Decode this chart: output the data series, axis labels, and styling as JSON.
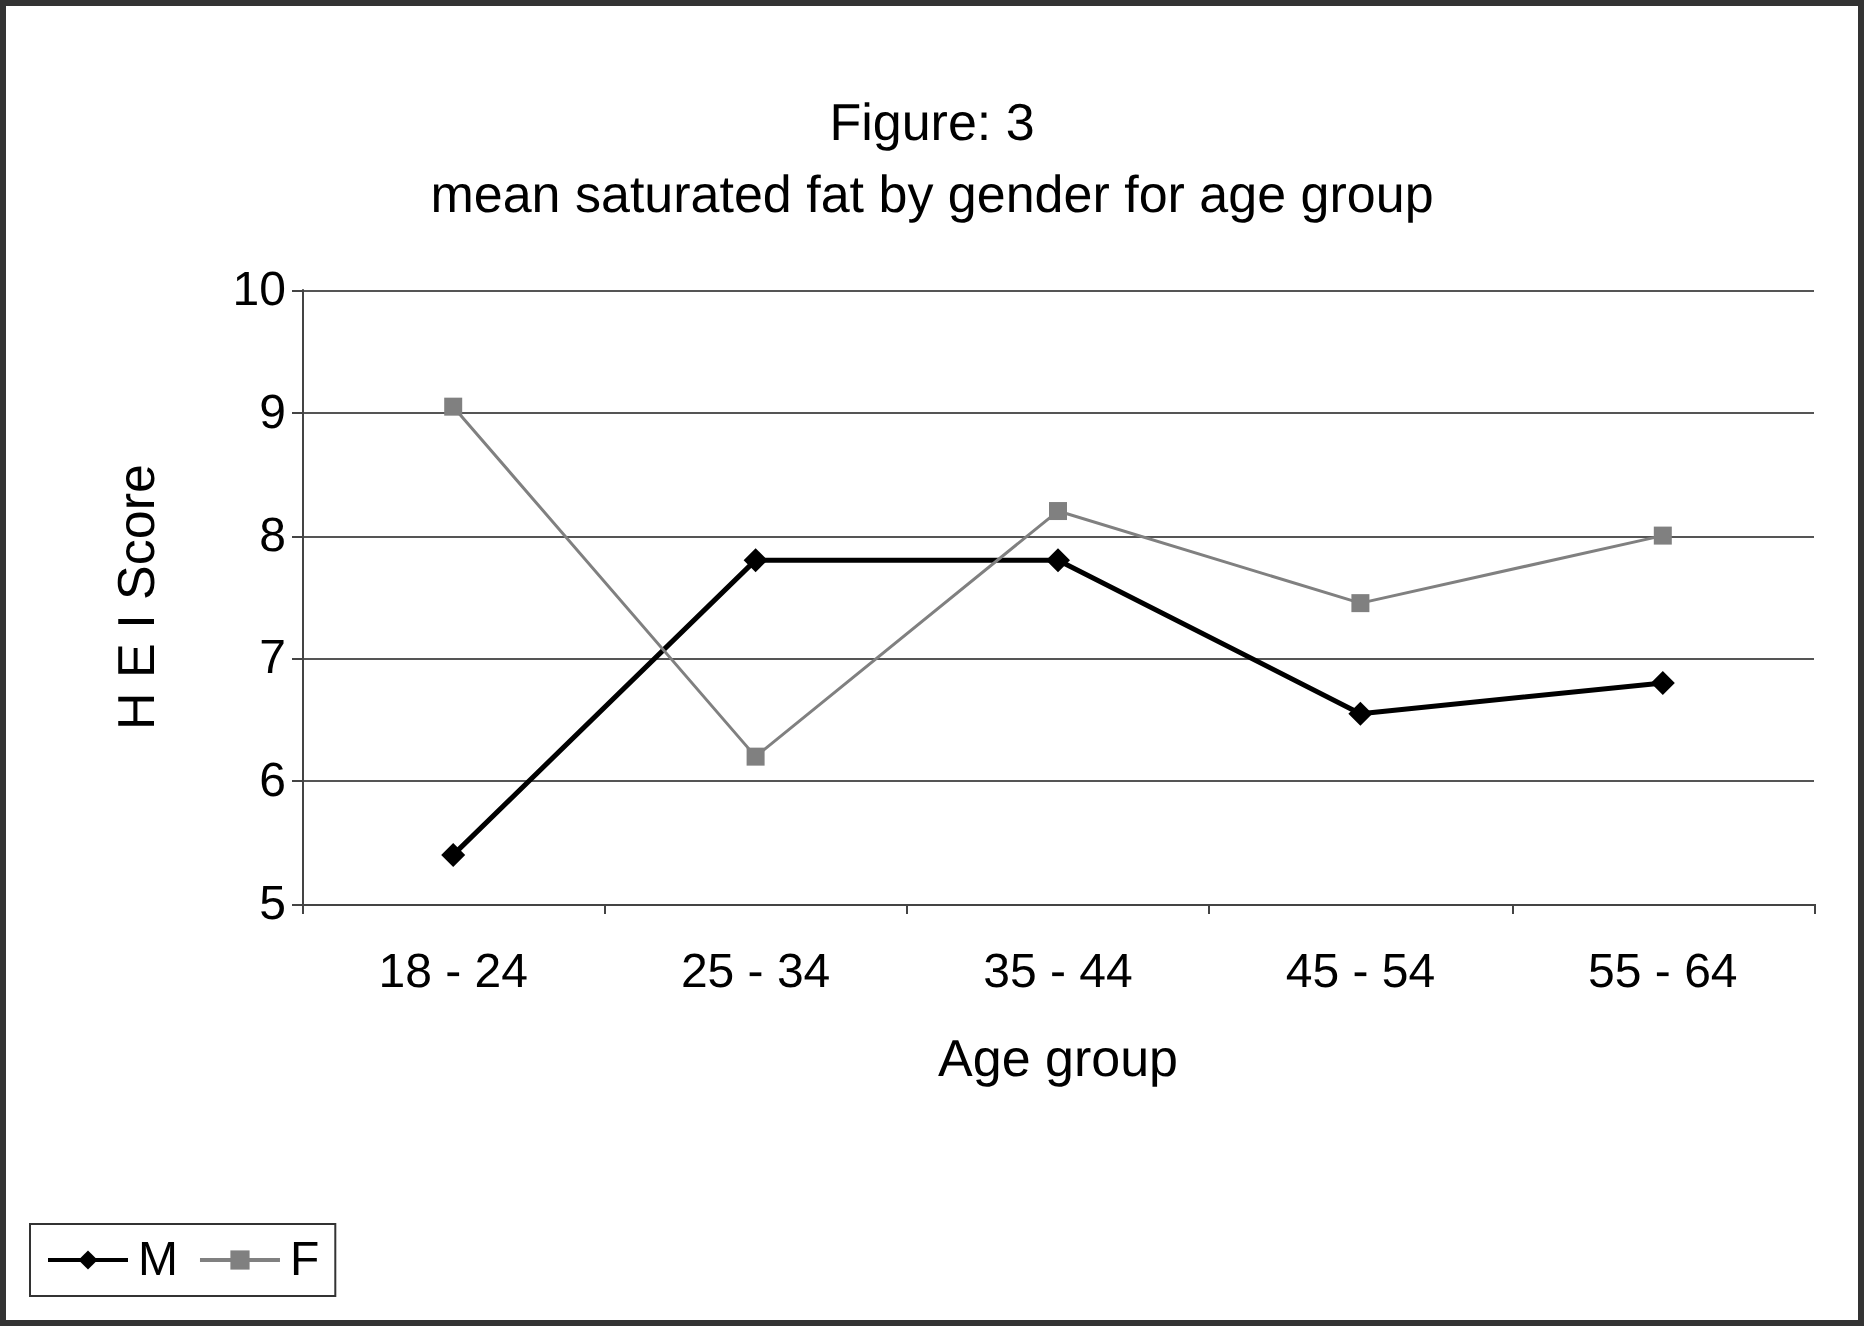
{
  "chart_data": {
    "type": "line",
    "title": "Figure: 3",
    "subtitle": "mean saturated fat by gender for age group",
    "xlabel": "Age group",
    "ylabel": "H E I Score",
    "categories": [
      "18 - 24",
      "25 - 34",
      "35 - 44",
      "45 - 54",
      "55 - 64"
    ],
    "series": [
      {
        "name": "M",
        "color": "#000000",
        "marker": "diamond",
        "values": [
          5.4,
          7.8,
          7.8,
          6.55,
          6.8
        ]
      },
      {
        "name": "F",
        "color": "#808080",
        "marker": "square",
        "values": [
          9.05,
          6.2,
          8.2,
          7.45,
          8.0
        ]
      }
    ],
    "ylim": [
      5,
      10
    ],
    "yticks": [
      5,
      6,
      7,
      8,
      9,
      10
    ],
    "grid": "y",
    "legend": "bottom left",
    "line_style": "solid"
  }
}
